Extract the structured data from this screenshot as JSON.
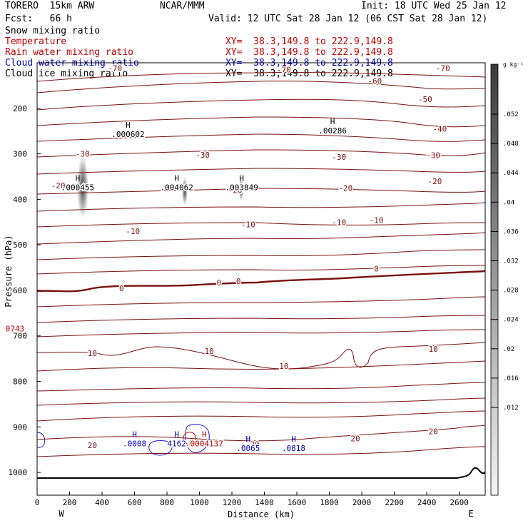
{
  "header": {
    "model": "TORERO  15km ARW",
    "center": "NCAR/MMM",
    "init": "Init: 18 UTC Wed 25 Jan 12",
    "fcst": "Fcst:   66 h",
    "valid": "Valid: 12 UTC Sat 28 Jan 12 (06 CST Sat 28 Jan 12)"
  },
  "fields": [
    {
      "name": "Snow mixing ratio",
      "color": "#000000",
      "xy": "",
      "to": ""
    },
    {
      "name": "Temperature",
      "color": "#c00000",
      "xy": "XY=  38.3,149.8",
      "to": "to 222.9,149.8"
    },
    {
      "name": "Rain water mixing ratio",
      "color": "#c00000",
      "xy": "XY=  38.3,149.8",
      "to": "to 222.9,149.8"
    },
    {
      "name": "Cloud water mixing ratio",
      "color": "#0000c0",
      "xy": "XY=  38.3,149.8",
      "to": "to 222.9,149.8"
    },
    {
      "name": "Cloud ice mixing ratio",
      "color": "#000000",
      "xy": "XY=  38.3,149.8",
      "to": "to 222.9,149.8"
    }
  ],
  "chart_data": {
    "type": "contour",
    "xlabel": "Distance (km)",
    "ylabel": "Pressure (hPa)",
    "x_ticks": [
      0,
      200,
      400,
      600,
      800,
      1000,
      1200,
      1400,
      1600,
      1800,
      2000,
      2200,
      2400,
      2600
    ],
    "y_ticks": [
      200,
      300,
      400,
      500,
      600,
      700,
      800,
      900,
      1000
    ],
    "xlim": [
      0,
      2760
    ],
    "ylim": [
      1050,
      100
    ],
    "x_end_labels": {
      "left": "W",
      "right": "E"
    },
    "colorbar": {
      "unit": "g kg⁻¹",
      "ticks": [
        ".052",
        ".048",
        ".044",
        ".04",
        ".036",
        ".032",
        ".028",
        ".024",
        ".02",
        ".016",
        ".012"
      ],
      "values": [
        0.052,
        0.048,
        0.044,
        0.04,
        0.036,
        0.032,
        0.028,
        0.024,
        0.02,
        0.016,
        0.012
      ]
    },
    "temperature_contours": [
      -70,
      -60,
      -50,
      -40,
      -30,
      -20,
      -10,
      0,
      10,
      20
    ],
    "temperature_labels": [
      {
        "text": "-70",
        "x": 480,
        "p": 112
      },
      {
        "text": "-70",
        "x": 1520,
        "p": 115
      },
      {
        "text": "-70",
        "x": 2500,
        "p": 112
      },
      {
        "text": "-60",
        "x": 2080,
        "p": 140
      },
      {
        "text": "-50",
        "x": 2390,
        "p": 180
      },
      {
        "text": "-40",
        "x": 2480,
        "p": 245
      },
      {
        "text": "-30",
        "x": 280,
        "p": 300
      },
      {
        "text": "-30",
        "x": 1020,
        "p": 302
      },
      {
        "text": "-30",
        "x": 1860,
        "p": 307
      },
      {
        "text": "-30",
        "x": 2440,
        "p": 303
      },
      {
        "text": "-20",
        "x": 130,
        "p": 370
      },
      {
        "text": "-20",
        "x": 1220,
        "p": 380
      },
      {
        "text": "-20",
        "x": 1900,
        "p": 375
      },
      {
        "text": "-20",
        "x": 2450,
        "p": 360
      },
      {
        "text": "-10",
        "x": 590,
        "p": 470
      },
      {
        "text": "-10",
        "x": 1300,
        "p": 455
      },
      {
        "text": "-10",
        "x": 1860,
        "p": 450
      },
      {
        "text": "-10",
        "x": 2090,
        "p": 446
      },
      {
        "text": "0",
        "x": 520,
        "p": 595
      },
      {
        "text": "0",
        "x": 1120,
        "p": 583
      },
      {
        "text": "0",
        "x": 1240,
        "p": 580
      },
      {
        "text": "0",
        "x": 2090,
        "p": 552
      },
      {
        "text": "10",
        "x": 340,
        "p": 738
      },
      {
        "text": "10",
        "x": 1060,
        "p": 733
      },
      {
        "text": "10",
        "x": 1520,
        "p": 766
      },
      {
        "text": "10",
        "x": 2440,
        "p": 729
      },
      {
        "text": "20",
        "x": 340,
        "p": 940
      },
      {
        "text": "20",
        "x": 1340,
        "p": 938
      },
      {
        "text": "20",
        "x": 1960,
        "p": 925
      },
      {
        "text": "20",
        "x": 2440,
        "p": 910
      }
    ],
    "maxima": [
      {
        "text": ".000602",
        "x": 560,
        "p": 255,
        "color": "#000000"
      },
      {
        "text": ".000455",
        "x": 250,
        "p": 372,
        "color": "#000000"
      },
      {
        "text": ".004062",
        "x": 860,
        "p": 372,
        "color": "#000000"
      },
      {
        "text": ".003849",
        "x": 1260,
        "p": 372,
        "color": "#000000"
      },
      {
        "text": ".00286",
        "x": 1820,
        "p": 247,
        "color": "#000000"
      },
      {
        "text": ".0008",
        "x": 600,
        "p": 935,
        "color": "#0000c0"
      },
      {
        "text": "4162",
        "x": 860,
        "p": 935,
        "color": "#0000c0"
      },
      {
        "text": ".0004137",
        "x": 1030,
        "p": 935,
        "color": "#c00000"
      },
      {
        "text": ".0065",
        "x": 1300,
        "p": 945,
        "color": "#0000c0"
      },
      {
        "text": ".0818",
        "x": 1580,
        "p": 945,
        "color": "#0000c0"
      }
    ],
    "side_label": {
      "text": "0743",
      "p": 690,
      "color": "#c00000"
    }
  }
}
